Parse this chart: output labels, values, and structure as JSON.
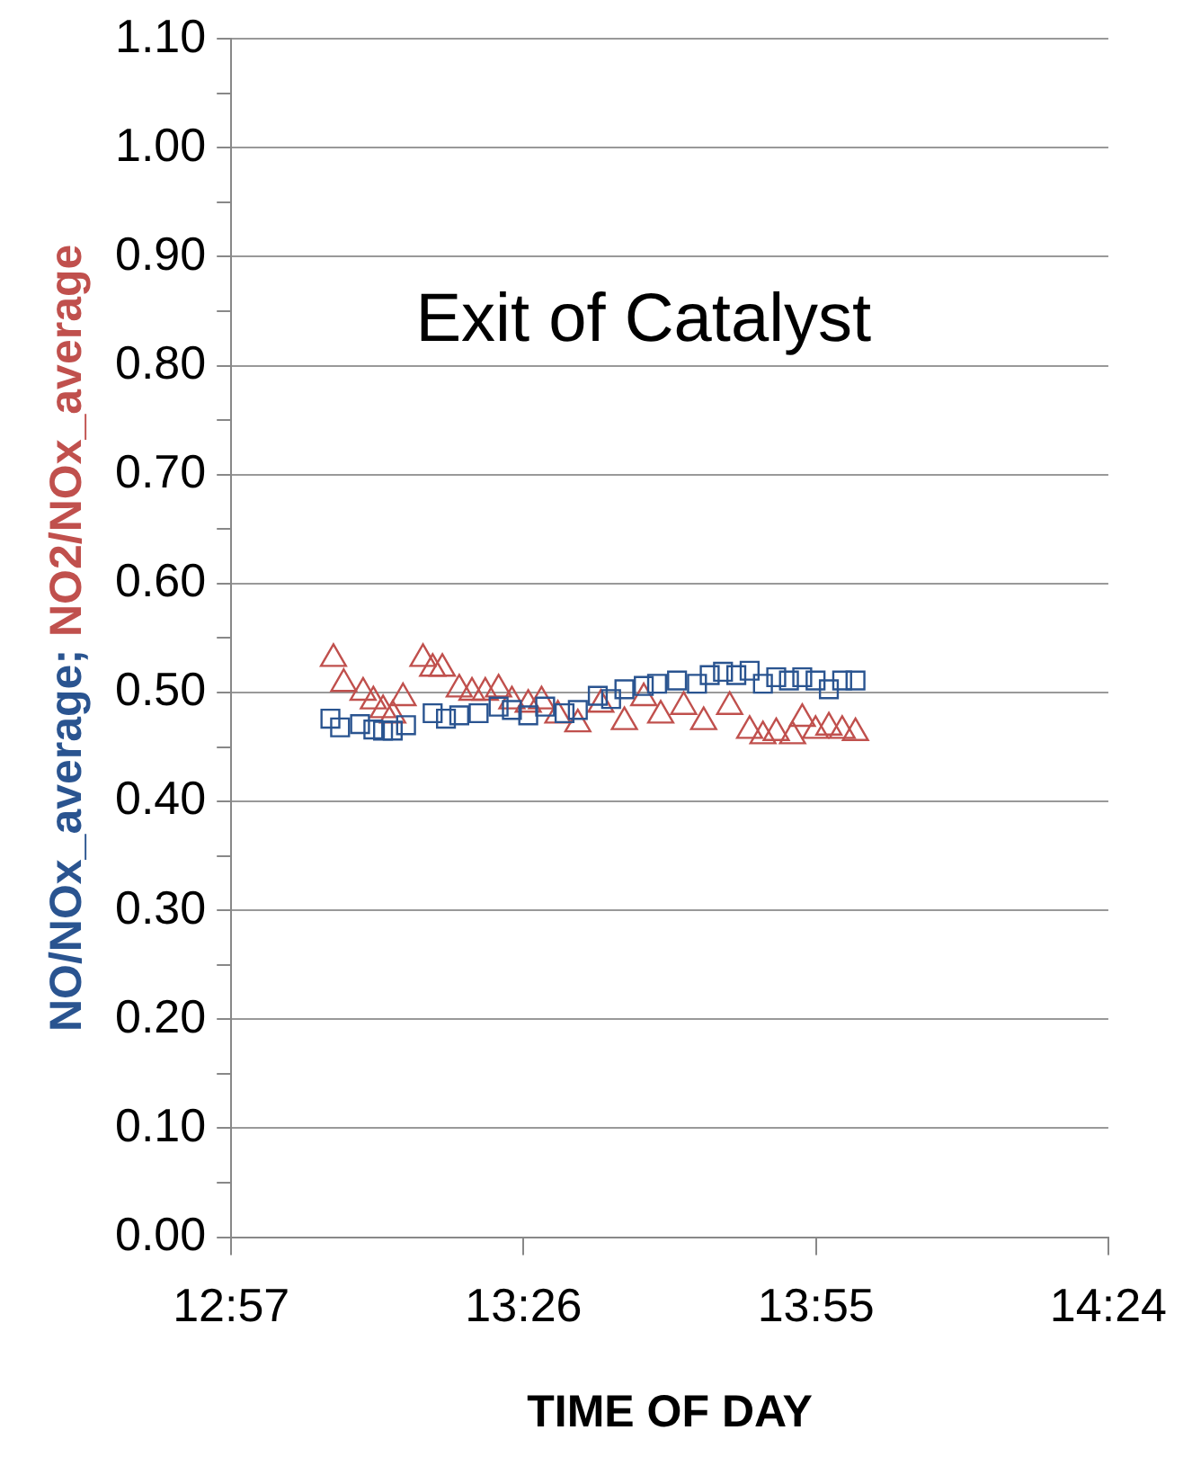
{
  "chart_data": {
    "type": "scatter",
    "title": "Exit of Catalyst",
    "xlabel": "TIME OF DAY",
    "ylabel": "NO/NOx_average; NO2/NOx_average",
    "xlim": [
      12.95,
      14.4
    ],
    "xticks": [
      {
        "value": 12.95,
        "label": "12:57"
      },
      {
        "value": 13.4333,
        "label": "13:26"
      },
      {
        "value": 13.9167,
        "label": "13:55"
      },
      {
        "value": 14.4,
        "label": "14:24"
      }
    ],
    "ylim": [
      0,
      1.1
    ],
    "yticks": [
      {
        "value": 0,
        "label": "0.00"
      },
      {
        "value": 0.05,
        "label": null
      },
      {
        "value": 0.1,
        "label": "0.10"
      },
      {
        "value": 0.15,
        "label": null
      },
      {
        "value": 0.2,
        "label": "0.20"
      },
      {
        "value": 0.25,
        "label": null
      },
      {
        "value": 0.3,
        "label": "0.30"
      },
      {
        "value": 0.35,
        "label": null
      },
      {
        "value": 0.4,
        "label": "0.40"
      },
      {
        "value": 0.45,
        "label": null
      },
      {
        "value": 0.5,
        "label": "0.50"
      },
      {
        "value": 0.55,
        "label": null
      },
      {
        "value": 0.6,
        "label": "0.60"
      },
      {
        "value": 0.65,
        "label": null
      },
      {
        "value": 0.7,
        "label": "0.70"
      },
      {
        "value": 0.75,
        "label": null
      },
      {
        "value": 0.8,
        "label": "0.80"
      },
      {
        "value": 0.85,
        "label": null
      },
      {
        "value": 0.9,
        "label": "0.90"
      },
      {
        "value": 0.95,
        "label": null
      },
      {
        "value": 1.0,
        "label": "1.00"
      },
      {
        "value": 1.05,
        "label": null
      },
      {
        "value": 1.1,
        "label": "1.10"
      }
    ],
    "grid": "y",
    "legend": false,
    "series": [
      {
        "color": "#2a5490",
        "marker": "square",
        "x": [
          13.114,
          13.13,
          13.163,
          13.185,
          13.201,
          13.217,
          13.239,
          13.283,
          13.305,
          13.327,
          13.359,
          13.392,
          13.414,
          13.441,
          13.469,
          13.501,
          13.523,
          13.556,
          13.578,
          13.6,
          13.632,
          13.654,
          13.687,
          13.72,
          13.741,
          13.763,
          13.785,
          13.807,
          13.829,
          13.851,
          13.872,
          13.894,
          13.916,
          13.938,
          13.96,
          13.982
        ],
        "values": [
          0.476,
          0.468,
          0.471,
          0.466,
          0.465,
          0.465,
          0.47,
          0.481,
          0.476,
          0.479,
          0.481,
          0.487,
          0.484,
          0.479,
          0.487,
          0.481,
          0.484,
          0.497,
          0.494,
          0.503,
          0.506,
          0.508,
          0.511,
          0.508,
          0.516,
          0.519,
          0.516,
          0.52,
          0.508,
          0.514,
          0.511,
          0.514,
          0.511,
          0.503,
          0.511,
          0.511
        ]
      },
      {
        "color": "#c0504d",
        "marker": "triangle",
        "x": [
          13.119,
          13.136,
          13.168,
          13.185,
          13.201,
          13.217,
          13.234,
          13.267,
          13.283,
          13.299,
          13.327,
          13.348,
          13.37,
          13.392,
          13.414,
          13.441,
          13.463,
          13.49,
          13.523,
          13.561,
          13.6,
          13.632,
          13.66,
          13.698,
          13.731,
          13.774,
          13.807,
          13.829,
          13.851,
          13.878,
          13.894,
          13.916,
          13.938,
          13.96,
          13.982
        ],
        "values": [
          0.531,
          0.508,
          0.5,
          0.492,
          0.484,
          0.479,
          0.495,
          0.531,
          0.522,
          0.522,
          0.503,
          0.5,
          0.5,
          0.503,
          0.492,
          0.489,
          0.492,
          0.479,
          0.471,
          0.489,
          0.473,
          0.495,
          0.479,
          0.487,
          0.473,
          0.487,
          0.465,
          0.46,
          0.463,
          0.46,
          0.476,
          0.465,
          0.468,
          0.465,
          0.463
        ]
      }
    ]
  }
}
